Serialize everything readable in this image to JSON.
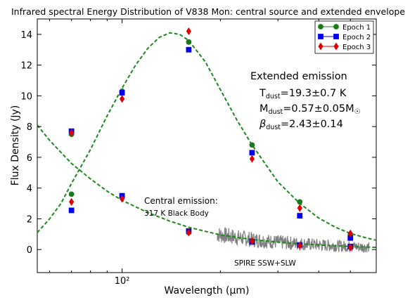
{
  "chart_data": {
    "type": "scatter",
    "title": "Infrared spectral Energy Distribution of V838 Mon: central source and extended envelope",
    "xlabel": "Wavelength (μm)",
    "ylabel": "Flux Density (Jy)",
    "xscale": "log",
    "xlim": [
      55,
      600
    ],
    "ylim": [
      -1.5,
      15
    ],
    "grid": false,
    "legend_position": "top-right",
    "x_ticks": [
      100
    ],
    "x_tick_labels": [
      "10²"
    ],
    "y_ticks": [
      0,
      2,
      4,
      6,
      8,
      10,
      12,
      14
    ],
    "series": [
      {
        "name": "Epoch 1",
        "color": "#1a7a1a",
        "marker": "circle",
        "points": [
          {
            "x": 70,
            "y": 7.5
          },
          {
            "x": 70,
            "y": 3.6
          },
          {
            "x": 100,
            "y": 10.3
          },
          {
            "x": 100,
            "y": 3.4
          },
          {
            "x": 160,
            "y": 13.5
          },
          {
            "x": 160,
            "y": 1.1
          },
          {
            "x": 250,
            "y": 6.8
          },
          {
            "x": 250,
            "y": 0.55
          },
          {
            "x": 350,
            "y": 3.1
          },
          {
            "x": 350,
            "y": 0.3
          },
          {
            "x": 500,
            "y": 0.95
          },
          {
            "x": 500,
            "y": 0.2
          }
        ]
      },
      {
        "name": "Epoch 2",
        "color": "#0000ee",
        "marker": "square",
        "points": [
          {
            "x": 70,
            "y": 7.7
          },
          {
            "x": 70,
            "y": 2.55
          },
          {
            "x": 100,
            "y": 10.2
          },
          {
            "x": 100,
            "y": 3.5
          },
          {
            "x": 160,
            "y": 13.0
          },
          {
            "x": 160,
            "y": 1.2
          },
          {
            "x": 250,
            "y": 6.3
          },
          {
            "x": 250,
            "y": 0.5
          },
          {
            "x": 350,
            "y": 2.2
          },
          {
            "x": 350,
            "y": 0.3
          },
          {
            "x": 500,
            "y": 0.75
          },
          {
            "x": 500,
            "y": 0.2
          }
        ]
      },
      {
        "name": "Epoch 3",
        "color": "#dd0000",
        "marker": "diamond",
        "points": [
          {
            "x": 70,
            "y": 7.6
          },
          {
            "x": 70,
            "y": 3.1
          },
          {
            "x": 100,
            "y": 9.8
          },
          {
            "x": 100,
            "y": 3.3
          },
          {
            "x": 160,
            "y": 14.2
          },
          {
            "x": 160,
            "y": 1.1
          },
          {
            "x": 250,
            "y": 5.9
          },
          {
            "x": 250,
            "y": 0.55
          },
          {
            "x": 350,
            "y": 2.7
          },
          {
            "x": 350,
            "y": 0.25
          },
          {
            "x": 500,
            "y": 1.05
          },
          {
            "x": 500,
            "y": 0.15
          }
        ]
      }
    ],
    "extended_emission_curve": {
      "color": "#1a8a1a",
      "points": [
        {
          "x": 55,
          "y": 1.1
        },
        {
          "x": 60,
          "y": 2.0
        },
        {
          "x": 65,
          "y": 3.0
        },
        {
          "x": 70,
          "y": 4.3
        },
        {
          "x": 80,
          "y": 6.5
        },
        {
          "x": 90,
          "y": 8.7
        },
        {
          "x": 100,
          "y": 10.5
        },
        {
          "x": 110,
          "y": 12.0
        },
        {
          "x": 120,
          "y": 13.1
        },
        {
          "x": 130,
          "y": 13.8
        },
        {
          "x": 140,
          "y": 14.1
        },
        {
          "x": 150,
          "y": 14.0
        },
        {
          "x": 160,
          "y": 13.6
        },
        {
          "x": 180,
          "y": 12.2
        },
        {
          "x": 200,
          "y": 10.4
        },
        {
          "x": 225,
          "y": 8.4
        },
        {
          "x": 250,
          "y": 6.8
        },
        {
          "x": 300,
          "y": 4.4
        },
        {
          "x": 350,
          "y": 3.0
        },
        {
          "x": 400,
          "y": 2.05
        },
        {
          "x": 450,
          "y": 1.45
        },
        {
          "x": 500,
          "y": 1.05
        },
        {
          "x": 550,
          "y": 0.8
        },
        {
          "x": 600,
          "y": 0.6
        }
      ]
    },
    "central_emission_curve": {
      "color": "#1a8a1a",
      "points": [
        {
          "x": 55,
          "y": 8.1
        },
        {
          "x": 60,
          "y": 7.1
        },
        {
          "x": 70,
          "y": 5.6
        },
        {
          "x": 80,
          "y": 4.6
        },
        {
          "x": 90,
          "y": 3.8
        },
        {
          "x": 100,
          "y": 3.2
        },
        {
          "x": 120,
          "y": 2.4
        },
        {
          "x": 140,
          "y": 1.85
        },
        {
          "x": 160,
          "y": 1.45
        },
        {
          "x": 200,
          "y": 0.95
        },
        {
          "x": 250,
          "y": 0.65
        },
        {
          "x": 300,
          "y": 0.48
        },
        {
          "x": 350,
          "y": 0.38
        },
        {
          "x": 400,
          "y": 0.3
        },
        {
          "x": 500,
          "y": 0.2
        },
        {
          "x": 600,
          "y": 0.14
        }
      ]
    },
    "spire_spectrum": {
      "label": "SPIRE SSW+SLW",
      "color": "#808080",
      "x_range": [
        195,
        570
      ]
    },
    "annotations": {
      "extended_heading": "Extended emission",
      "t_dust": "T",
      "t_dust_sub": "dust",
      "t_dust_value": "=19.3±0.7 K",
      "m_dust": "M",
      "m_dust_sub": "dust",
      "m_dust_value": "=0.57±0.05M",
      "m_dust_sun": "☉",
      "beta": "β",
      "beta_sub": "dust",
      "beta_value": "=2.43±0.14",
      "central_heading": "Central emission:",
      "central_sub": "317 K Black Body"
    }
  }
}
